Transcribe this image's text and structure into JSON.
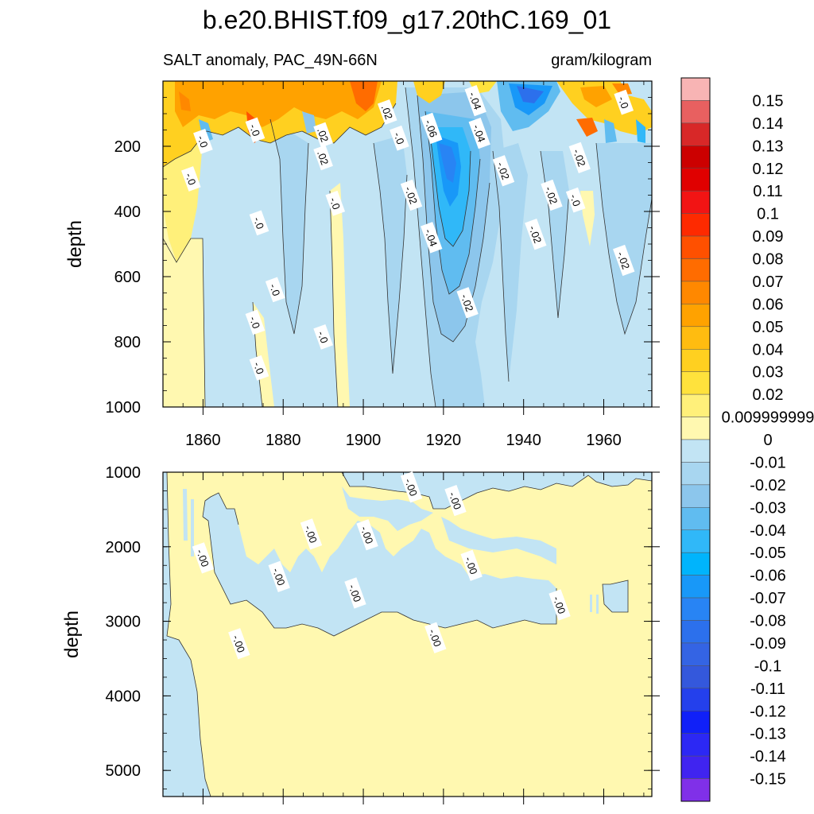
{
  "chart_data": {
    "type": "heatmap",
    "title": "b.e20.BHIST.f09_g17.20thC.169_01",
    "subtitle_left": "SALT anomaly, PAC_49N-66N",
    "subtitle_right": "gram/kilogram",
    "xlabel": "",
    "ylabel": "depth",
    "x_range": [
      1850,
      1972
    ],
    "x_ticks": [
      "1860",
      "1880",
      "1900",
      "1920",
      "1940",
      "1960"
    ],
    "x_tick_values": [
      1860,
      1880,
      1900,
      1920,
      1940,
      1960
    ],
    "upper_panel": {
      "y_range": [
        0,
        1000
      ],
      "y_ticks": [
        "200",
        "400",
        "600",
        "800",
        "1000"
      ],
      "y_tick_values": [
        200,
        400,
        600,
        800,
        1000
      ],
      "contour_labels": [
        {
          "text": "-.04",
          "x": 1928,
          "y": 60
        },
        {
          "text": "-.0",
          "x": 1965,
          "y": 65
        },
        {
          "text": ".02",
          "x": 1906,
          "y": 95
        },
        {
          "text": "-.06",
          "x": 1917,
          "y": 145
        },
        {
          "text": "-.0",
          "x": 1873,
          "y": 150
        },
        {
          "text": ".02",
          "x": 1890,
          "y": 165
        },
        {
          "text": "-.04",
          "x": 1929,
          "y": 160
        },
        {
          "text": "-.0",
          "x": 1909,
          "y": 175
        },
        {
          "text": "-.0",
          "x": 1860,
          "y": 185
        },
        {
          "text": ".02",
          "x": 1890,
          "y": 235
        },
        {
          "text": "-.02",
          "x": 1954,
          "y": 235
        },
        {
          "text": "-.02",
          "x": 1935,
          "y": 275
        },
        {
          "text": "-.0",
          "x": 1857,
          "y": 300
        },
        {
          "text": "-.02",
          "x": 1912,
          "y": 350
        },
        {
          "text": "-.02",
          "x": 1947,
          "y": 350
        },
        {
          "text": "-.0",
          "x": 1953,
          "y": 365
        },
        {
          "text": "-.0",
          "x": 1893,
          "y": 375
        },
        {
          "text": "-.0",
          "x": 1874,
          "y": 435
        },
        {
          "text": "-.02",
          "x": 1943,
          "y": 470
        },
        {
          "text": "-.04",
          "x": 1917,
          "y": 480
        },
        {
          "text": "-.02",
          "x": 1965,
          "y": 550
        },
        {
          "text": "-.0",
          "x": 1878,
          "y": 640
        },
        {
          "text": "-.02",
          "x": 1926,
          "y": 680
        },
        {
          "text": "-.0",
          "x": 1873,
          "y": 740
        },
        {
          "text": "-.0",
          "x": 1890,
          "y": 785
        },
        {
          "text": "-.0",
          "x": 1874,
          "y": 880
        }
      ]
    },
    "lower_panel": {
      "y_range": [
        1000,
        5350
      ],
      "y_ticks": [
        "1000",
        "2000",
        "3000",
        "4000",
        "5000"
      ],
      "y_tick_values": [
        1000,
        2000,
        3000,
        4000,
        5000
      ],
      "contour_labels": [
        {
          "text": "-.00",
          "x": 1912,
          "y": 1200
        },
        {
          "text": "-.00",
          "x": 1923,
          "y": 1380
        },
        {
          "text": "-.00",
          "x": 1887,
          "y": 1830
        },
        {
          "text": "-.00",
          "x": 1901,
          "y": 1840
        },
        {
          "text": "-.00",
          "x": 1860,
          "y": 2150
        },
        {
          "text": "-.00",
          "x": 1927,
          "y": 2250
        },
        {
          "text": "-.00",
          "x": 1879,
          "y": 2400
        },
        {
          "text": "-.00",
          "x": 1898,
          "y": 2620
        },
        {
          "text": "-.00",
          "x": 1949,
          "y": 2780
        },
        {
          "text": "-.00",
          "x": 1918,
          "y": 3220
        },
        {
          "text": "-.00",
          "x": 1869,
          "y": 3300
        }
      ]
    },
    "colorbar": {
      "labels": [
        "0.15",
        "0.14",
        "0.13",
        "0.12",
        "0.11",
        "0.1",
        "0.09",
        "0.08",
        "0.07",
        "0.06",
        "0.05",
        "0.04",
        "0.03",
        "0.02",
        "0.009999999",
        "0",
        "-0.01",
        "-0.02",
        "-0.03",
        "-0.04",
        "-0.05",
        "-0.06",
        "-0.07",
        "-0.08",
        "-0.09",
        "-0.1",
        "-0.11",
        "-0.12",
        "-0.13",
        "-0.14",
        "-0.15"
      ],
      "colors": [
        "#f8b4b4",
        "#e86060",
        "#d82828",
        "#cc0000",
        "#e00000",
        "#f21414",
        "#fe2a00",
        "#ff5000",
        "#ff6c00",
        "#ff8800",
        "#ffa200",
        "#ffbc10",
        "#ffd020",
        "#ffe23c",
        "#fff07a",
        "#fff8b0",
        "#c2e4f4",
        "#a8d6f0",
        "#8cc6ec",
        "#60bcf0",
        "#30b8f8",
        "#00b4fc",
        "#1898f8",
        "#2884f4",
        "#2c70ec",
        "#3464e4",
        "#3458dc",
        "#2440ec",
        "#1020f8",
        "#2c28f4",
        "#4024f0",
        "#8030e8"
      ]
    }
  }
}
